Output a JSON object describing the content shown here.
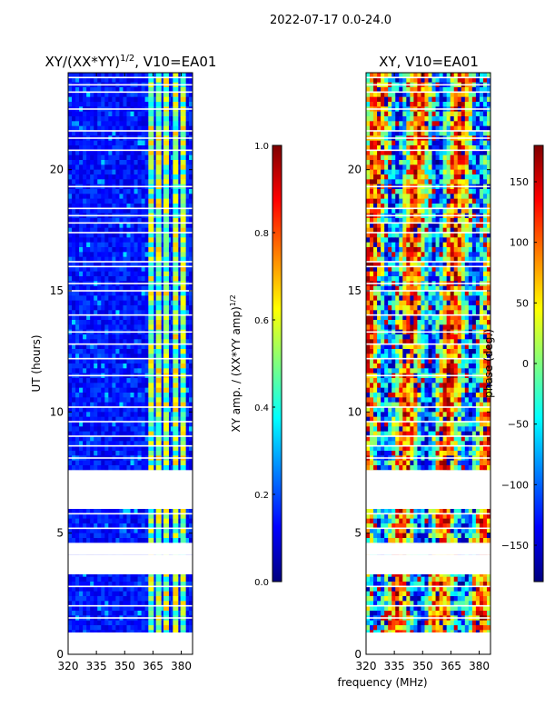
{
  "figure": {
    "suptitle": "2022-07-17 0.0-24.0",
    "shared_xlabel": "frequency (MHz)"
  },
  "chart_data": [
    {
      "type": "heatmap",
      "title_main": "XY/(XX*YY)",
      "title_exp": "1/2",
      "title_rest": ", V10=EA01",
      "xlabel": "",
      "ylabel": "UT (hours)",
      "xlim": [
        320,
        386
      ],
      "ylim": [
        0,
        24
      ],
      "x_ticks": [
        320,
        335,
        350,
        365,
        380
      ],
      "y_ticks": [
        0,
        5,
        10,
        15,
        20
      ],
      "colorbar": {
        "label_main": "XY amp. / (XX*YY amp)",
        "label_exp": "1/2",
        "range": [
          0.0,
          1.0
        ],
        "ticks": [
          "0.0",
          "0.2",
          "0.4",
          "0.6",
          "0.8",
          "1.0"
        ],
        "tick_values": [
          0.0,
          0.2,
          0.4,
          0.6,
          0.8,
          1.0
        ],
        "colormap": "jet"
      },
      "bright_channels_mhz": [
        364,
        368,
        372,
        377,
        381
      ],
      "data_gaps_hours": [
        [
          0.0,
          0.9
        ],
        [
          3.3,
          4.1
        ],
        [
          4.1,
          4.6
        ],
        [
          6.0,
          7.6
        ]
      ]
    },
    {
      "type": "heatmap",
      "title_main": "XY, V10=EA01",
      "xlabel": "frequency (MHz)",
      "ylabel": "",
      "xlim": [
        320,
        386
      ],
      "ylim": [
        0,
        24
      ],
      "x_ticks": [
        320,
        335,
        350,
        365,
        380
      ],
      "y_ticks": [
        0,
        5,
        10,
        15,
        20
      ],
      "colorbar": {
        "label_main": "phase (deg.)",
        "range": [
          -180,
          180
        ],
        "ticks": [
          "−150",
          "−100",
          "−50",
          "0",
          "50",
          "100",
          "150"
        ],
        "tick_values": [
          -150,
          -100,
          -50,
          0,
          50,
          100,
          150
        ],
        "colormap": "jet"
      },
      "data_gaps_hours": [
        [
          0.0,
          0.9
        ],
        [
          3.3,
          4.1
        ],
        [
          4.1,
          4.6
        ],
        [
          6.0,
          7.6
        ]
      ]
    }
  ]
}
